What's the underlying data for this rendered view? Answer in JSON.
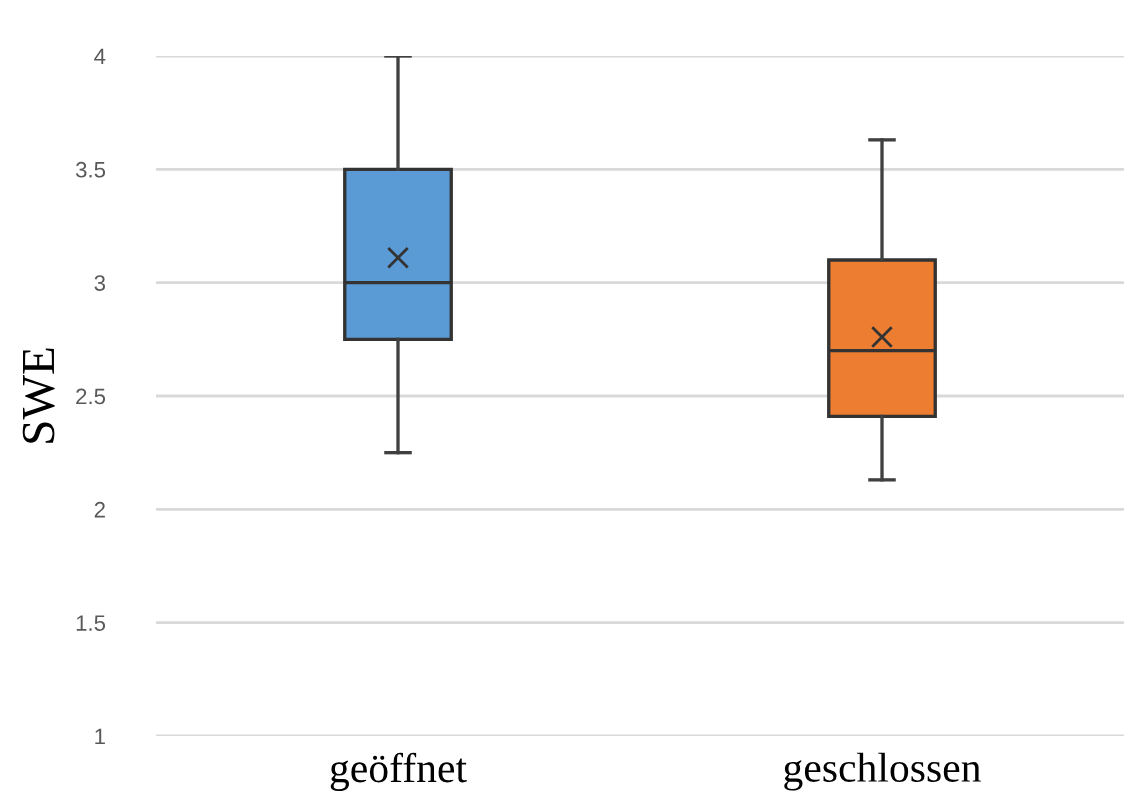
{
  "chart_data": {
    "type": "box",
    "ylabel": "SWE",
    "categories": [
      "geöffnet",
      "geschlossen"
    ],
    "colors": [
      "#5b9bd5",
      "#ed7d31"
    ],
    "boxes": [
      {
        "low": 2.25,
        "q1": 2.75,
        "median": 3.0,
        "q3": 3.5,
        "high": 4.0,
        "mean": 3.11
      },
      {
        "low": 2.13,
        "q1": 2.41,
        "median": 2.7,
        "q3": 3.1,
        "high": 3.63,
        "mean": 2.76
      }
    ],
    "ylim": [
      1,
      4
    ],
    "yticks": [
      1,
      1.5,
      2,
      2.5,
      3,
      3.5,
      4
    ],
    "grid": "y",
    "marker": "cross"
  }
}
